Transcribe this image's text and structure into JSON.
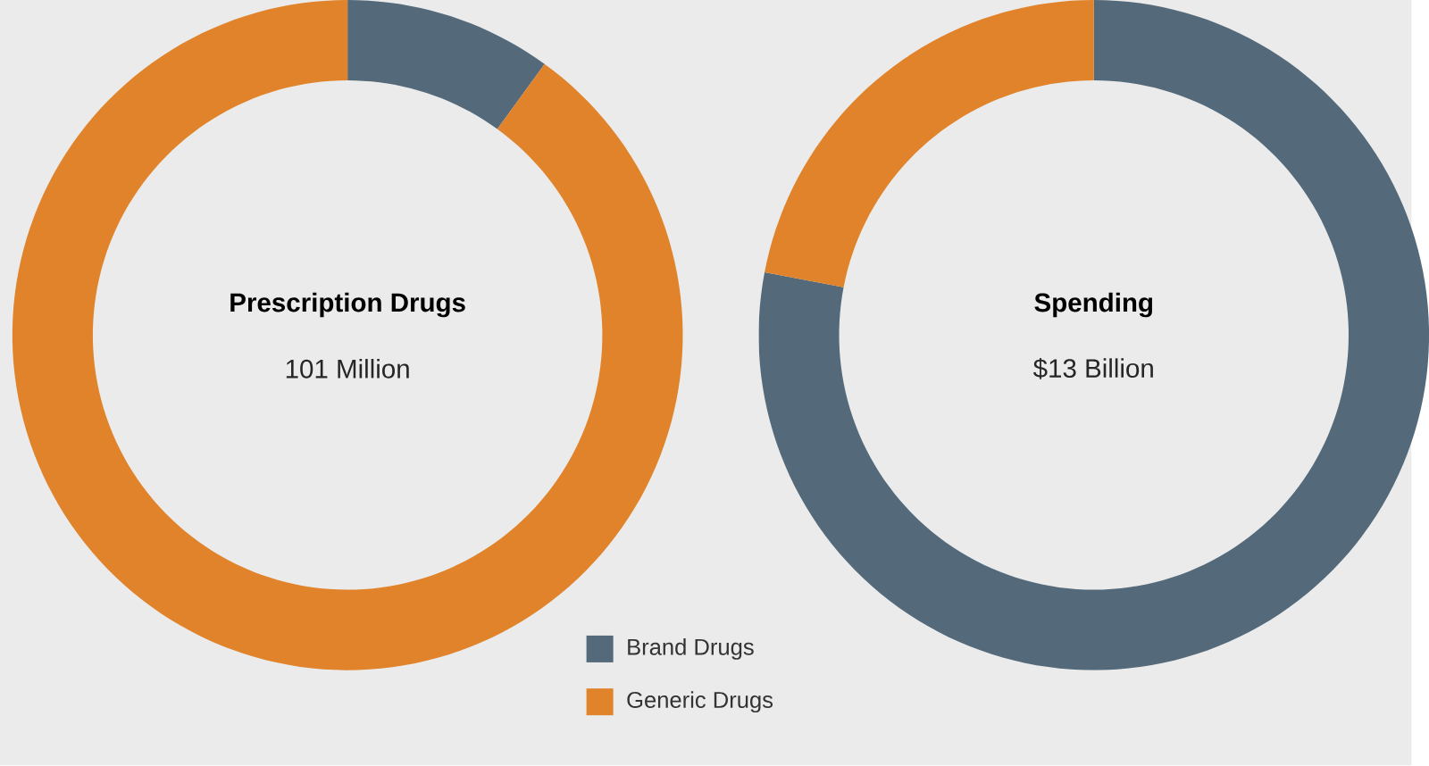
{
  "chart_data": [
    {
      "type": "donut",
      "title": "Prescription Drugs",
      "subtitle": "101 Million",
      "categories": [
        "Brand Drugs",
        "Generic Drugs"
      ],
      "values": [
        10,
        90
      ],
      "colors": [
        "#546a7b",
        "#e0832a"
      ],
      "legend": "bottom right"
    },
    {
      "type": "donut",
      "title": "Spending",
      "subtitle": "$13 Billion",
      "categories": [
        null,
        null
      ],
      "values": [
        78,
        22
      ],
      "colors": [
        "#546a7b",
        "#e0832a"
      ]
    }
  ]
}
